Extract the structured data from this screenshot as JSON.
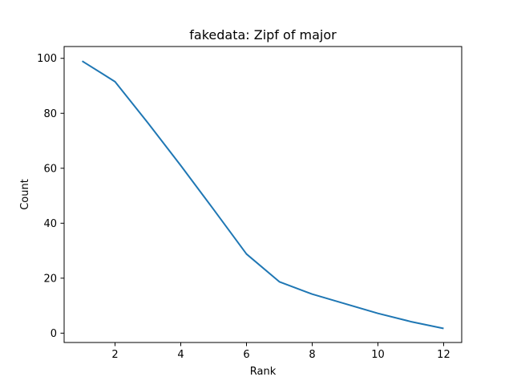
{
  "chart_data": {
    "type": "line",
    "title": "fakedata: Zipf of major",
    "xlabel": "Rank",
    "ylabel": "Count",
    "xlim": [
      0.45,
      12.55
    ],
    "ylim": [
      -3.4,
      104.3
    ],
    "xticks": [
      2,
      4,
      6,
      8,
      10,
      12
    ],
    "yticks": [
      0,
      20,
      40,
      60,
      80,
      100
    ],
    "grid": false,
    "series": [
      {
        "color": "#1f77b4",
        "x": [
          1,
          2,
          3,
          4,
          5,
          6,
          7,
          8,
          9,
          10,
          11,
          12
        ],
        "y": [
          99,
          91.5,
          76.5,
          61,
          45,
          28.8,
          18.7,
          14.2,
          10.7,
          7.2,
          4.2,
          1.7
        ]
      }
    ]
  }
}
